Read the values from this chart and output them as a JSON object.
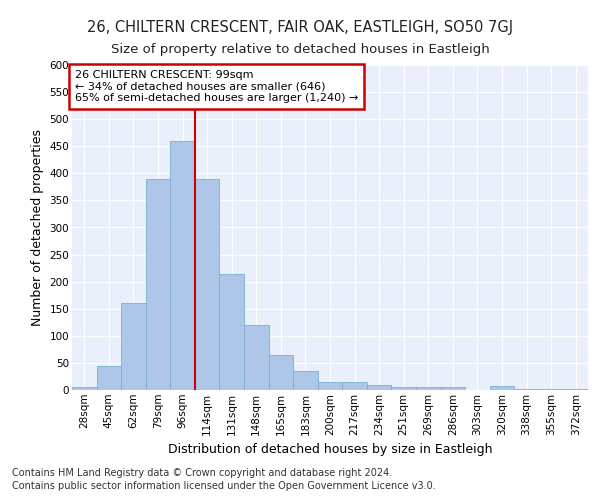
{
  "title": "26, CHILTERN CRESCENT, FAIR OAK, EASTLEIGH, SO50 7GJ",
  "subtitle": "Size of property relative to detached houses in Eastleigh",
  "xlabel": "Distribution of detached houses by size in Eastleigh",
  "ylabel": "Number of detached properties",
  "footnote1": "Contains HM Land Registry data © Crown copyright and database right 2024.",
  "footnote2": "Contains public sector information licensed under the Open Government Licence v3.0.",
  "annotation_line1": "26 CHILTERN CRESCENT: 99sqm",
  "annotation_line2": "← 34% of detached houses are smaller (646)",
  "annotation_line3": "65% of semi-detached houses are larger (1,240) →",
  "categories": [
    "28sqm",
    "45sqm",
    "62sqm",
    "79sqm",
    "96sqm",
    "114sqm",
    "131sqm",
    "148sqm",
    "165sqm",
    "183sqm",
    "200sqm",
    "217sqm",
    "234sqm",
    "251sqm",
    "269sqm",
    "286sqm",
    "303sqm",
    "320sqm",
    "338sqm",
    "355sqm",
    "372sqm"
  ],
  "values": [
    5,
    45,
    160,
    390,
    460,
    390,
    215,
    120,
    65,
    35,
    15,
    15,
    10,
    5,
    5,
    5,
    0,
    7,
    2,
    1,
    1
  ],
  "bar_color": "#aec6e8",
  "bar_edge_color": "#7aafd4",
  "vline_x": 4.5,
  "vline_color": "#cc0000",
  "ylim": [
    0,
    600
  ],
  "yticks": [
    0,
    50,
    100,
    150,
    200,
    250,
    300,
    350,
    400,
    450,
    500,
    550,
    600
  ],
  "bg_color": "#eaf0fb",
  "annotation_box_color": "#cc0000",
  "title_fontsize": 10.5,
  "subtitle_fontsize": 9.5,
  "ylabel_fontsize": 9,
  "xlabel_fontsize": 9,
  "tick_fontsize": 7.5,
  "annotation_fontsize": 8,
  "footnote_fontsize": 7
}
